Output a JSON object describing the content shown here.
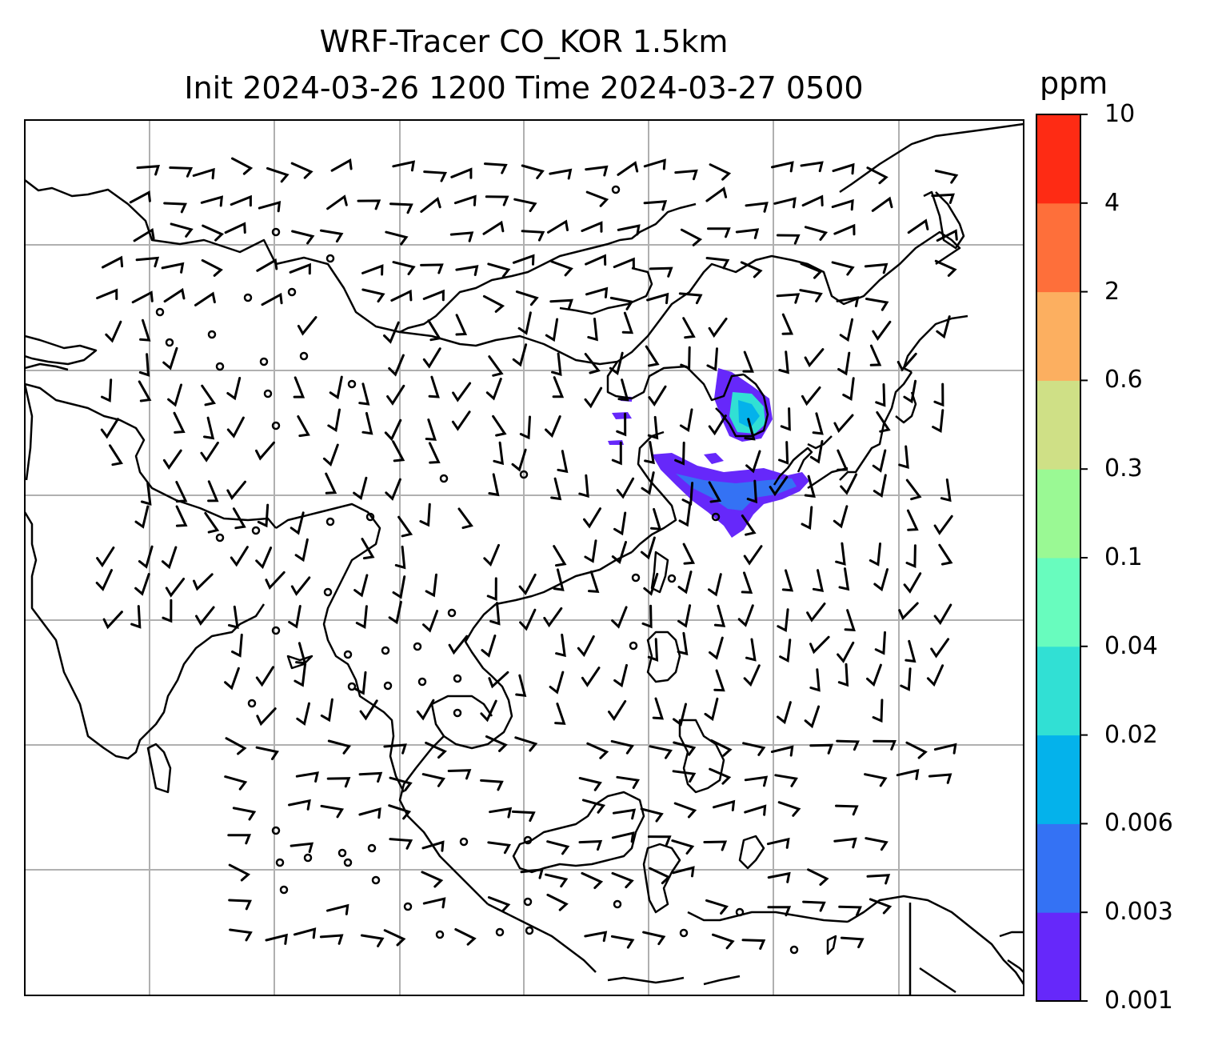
{
  "title": {
    "line1": "WRF-Tracer CO_KOR 1.5km",
    "line2": "Init 2024-03-26 1200 Time 2024-03-27 0500"
  },
  "colorbar": {
    "unit": "ppm",
    "levels": [
      "0.001",
      "0.003",
      "0.006",
      "0.02",
      "0.04",
      "0.1",
      "0.3",
      "0.6",
      "2",
      "4",
      "10"
    ],
    "colors": [
      "#6628fa",
      "#3472f4",
      "#04b2eb",
      "#31e0d4",
      "#68fcbe",
      "#9af994",
      "#cfe086",
      "#fcaf60",
      "#fe6f3a",
      "#fe2b14"
    ]
  },
  "map": {
    "gridlines": true,
    "tracer_color": "#6628fa",
    "tracer_core_colors": [
      "#3472f4",
      "#04b2eb",
      "#31e0d4"
    ]
  }
}
